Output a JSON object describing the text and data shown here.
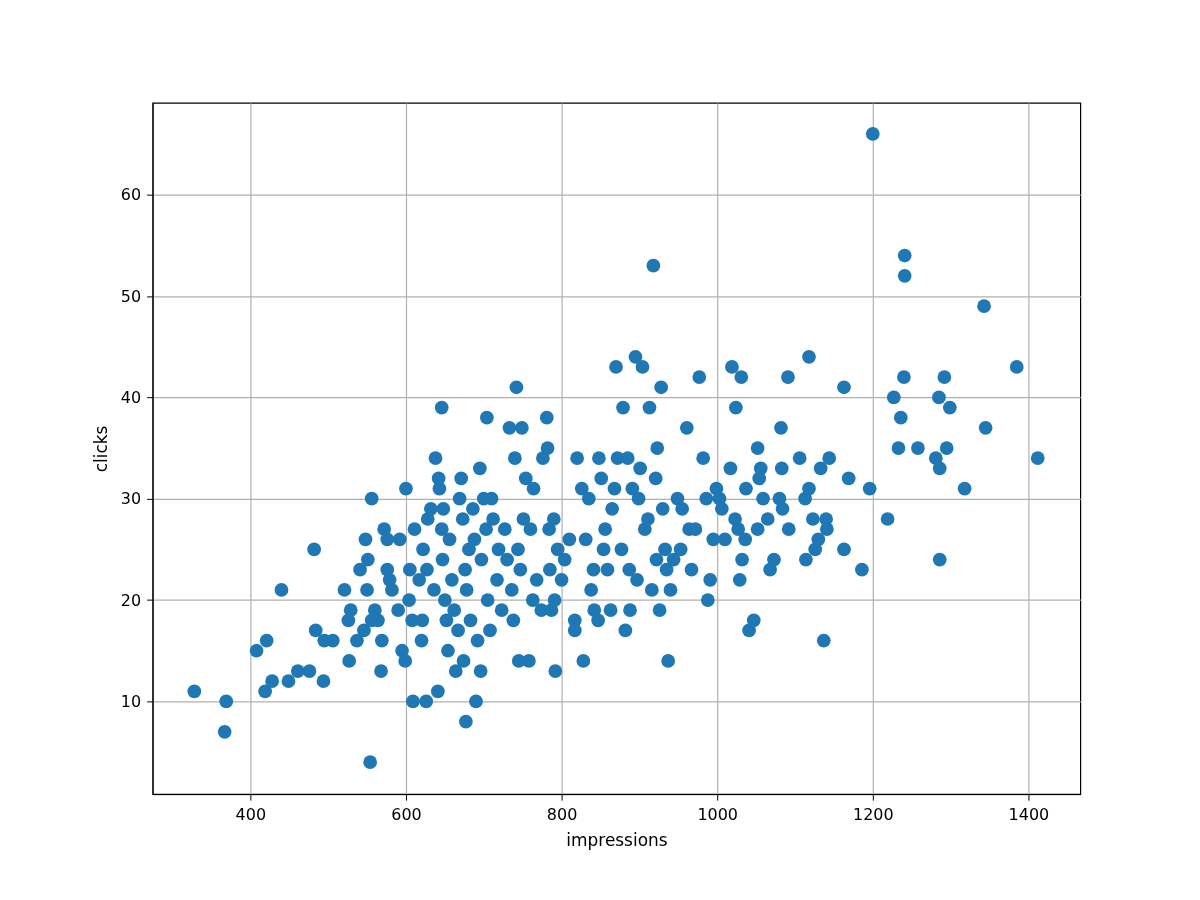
{
  "chart_data": {
    "type": "scatter",
    "xlabel": "impressions",
    "ylabel": "clicks",
    "xlim": [
      274.4,
      1466.7
    ],
    "ylim": [
      0.85,
      69.06
    ],
    "xticks": [
      400,
      600,
      800,
      1000,
      1200,
      1400
    ],
    "yticks": [
      10,
      20,
      30,
      40,
      50,
      60
    ],
    "grid": true,
    "marker": "circle",
    "series": [
      {
        "color": "#1f77b4",
        "x": [
          328,
          369,
          367,
          408,
          421,
          419,
          428,
          440,
          449,
          461,
          476,
          482,
          484,
          495,
          494,
          506,
          521,
          526,
          527,
          529,
          537,
          541,
          546,
          548,
          550,
          551,
          554,
          556,
          556,
          560,
          564,
          568,
          569,
          572,
          576,
          576,
          579,
          582,
          590,
          592,
          595,
          599,
          600,
          604,
          605,
          608,
          609,
          611,
          617,
          620,
          621,
          622,
          626,
          627,
          628,
          632,
          636,
          638,
          641,
          642,
          643,
          646,
          646,
          647,
          648,
          650,
          652,
          654,
          656,
          659,
          662,
          664,
          667,
          669,
          671,
          673,
          674,
          676,
          677,
          678,
          681,
          683,
          686,
          688,
          690,
          692,
          695,
          696,
          697,
          700,
          703,
          704,
          705,
          708,
          710,
          712,
          717,
          719,
          723,
          727,
          730,
          733,
          736,
          738,
          740,
          742,
          744,
          745,
          747,
          749,
          751,
          754,
          758,
          760,
          763,
          764,
          768,
          774,
          776,
          781,
          782,
          784,
          785,
          787,
          790,
          792,
          791,
          795,
          800,
          804,
          810,
          817,
          817,
          820,
          826,
          828,
          831,
          835,
          838,
          841,
          842,
          847,
          848,
          851,
          854,
          856,
          859,
          863,
          865,
          868,
          870,
          872,
          877,
          879,
          882,
          885,
          887,
          888,
          891,
          895,
          897,
          899,
          901,
          904,
          907,
          911,
          913,
          916,
          918,
          921,
          922,
          923,
          926,
          928,
          930,
          933,
          935,
          937,
          940,
          944,
          949,
          953,
          955,
          961,
          964,
          967,
          972,
          977,
          982,
          986,
          988,
          991,
          995,
          999,
          1003,
          1006,
          1010,
          1017,
          1019,
          1023,
          1024,
          1027,
          1029,
          1031,
          1032,
          1036,
          1037,
          1041,
          1047,
          1052,
          1052,
          1054,
          1056,
          1059,
          1065,
          1068,
          1073,
          1080,
          1082,
          1083,
          1084,
          1092,
          1091,
          1106,
          1113,
          1114,
          1118,
          1118,
          1123,
          1126,
          1130,
          1133,
          1137,
          1140,
          1141,
          1144,
          1163,
          1163,
          1169,
          1186,
          1196,
          1200,
          1219,
          1227,
          1233,
          1236,
          1240,
          1241,
          1241,
          1258,
          1281,
          1285,
          1286,
          1286,
          1292,
          1295,
          1299,
          1318,
          1343,
          1345,
          1385,
          1412
        ],
        "values": [
          11,
          10,
          7,
          15,
          16,
          11,
          12,
          21,
          12,
          13,
          13,
          25,
          17,
          16,
          12,
          16,
          21,
          18,
          14,
          19,
          16,
          23,
          17,
          26,
          21,
          24,
          4,
          30,
          18,
          19,
          18,
          13,
          16,
          27,
          23,
          26,
          22,
          21,
          19,
          26,
          15,
          14,
          31,
          20,
          23,
          18,
          10,
          27,
          22,
          16,
          18,
          25,
          10,
          23,
          28,
          29,
          21,
          34,
          11,
          32,
          31,
          39,
          27,
          24,
          29,
          20,
          18,
          15,
          26,
          22,
          19,
          13,
          17,
          30,
          32,
          28,
          14,
          23,
          8,
          21,
          25,
          18,
          29,
          26,
          10,
          16,
          33,
          13,
          24,
          30,
          27,
          38,
          20,
          17,
          30,
          28,
          22,
          25,
          19,
          27,
          24,
          37,
          21,
          18,
          34,
          41,
          25,
          14,
          23,
          37,
          28,
          32,
          14,
          27,
          20,
          31,
          22,
          19,
          34,
          38,
          35,
          27,
          23,
          19,
          28,
          13,
          20,
          25,
          22,
          24,
          26,
          18,
          17,
          34,
          31,
          14,
          26,
          30,
          21,
          23,
          19,
          18,
          34,
          32,
          25,
          27,
          23,
          19,
          29,
          31,
          43,
          34,
          25,
          39,
          17,
          34,
          23,
          19,
          31,
          44,
          22,
          30,
          33,
          43,
          27,
          28,
          39,
          21,
          53,
          32,
          24,
          35,
          19,
          41,
          29,
          25,
          23,
          14,
          21,
          24,
          30,
          25,
          29,
          37,
          27,
          23,
          27,
          42,
          34,
          30,
          20,
          22,
          26,
          31,
          30,
          29,
          26,
          33,
          43,
          28,
          39,
          27,
          22,
          42,
          24,
          26,
          31,
          17,
          18,
          27,
          35,
          32,
          33,
          30,
          28,
          23,
          24,
          30,
          37,
          33,
          29,
          27,
          42,
          34,
          30,
          24,
          44,
          31,
          28,
          25,
          26,
          33,
          16,
          28,
          27,
          34,
          25,
          41,
          32,
          23,
          31,
          66,
          28,
          40,
          35,
          38,
          42,
          54,
          52,
          35,
          34,
          40,
          33,
          24,
          42,
          35,
          39,
          31,
          49,
          37,
          43,
          34
        ]
      }
    ]
  }
}
